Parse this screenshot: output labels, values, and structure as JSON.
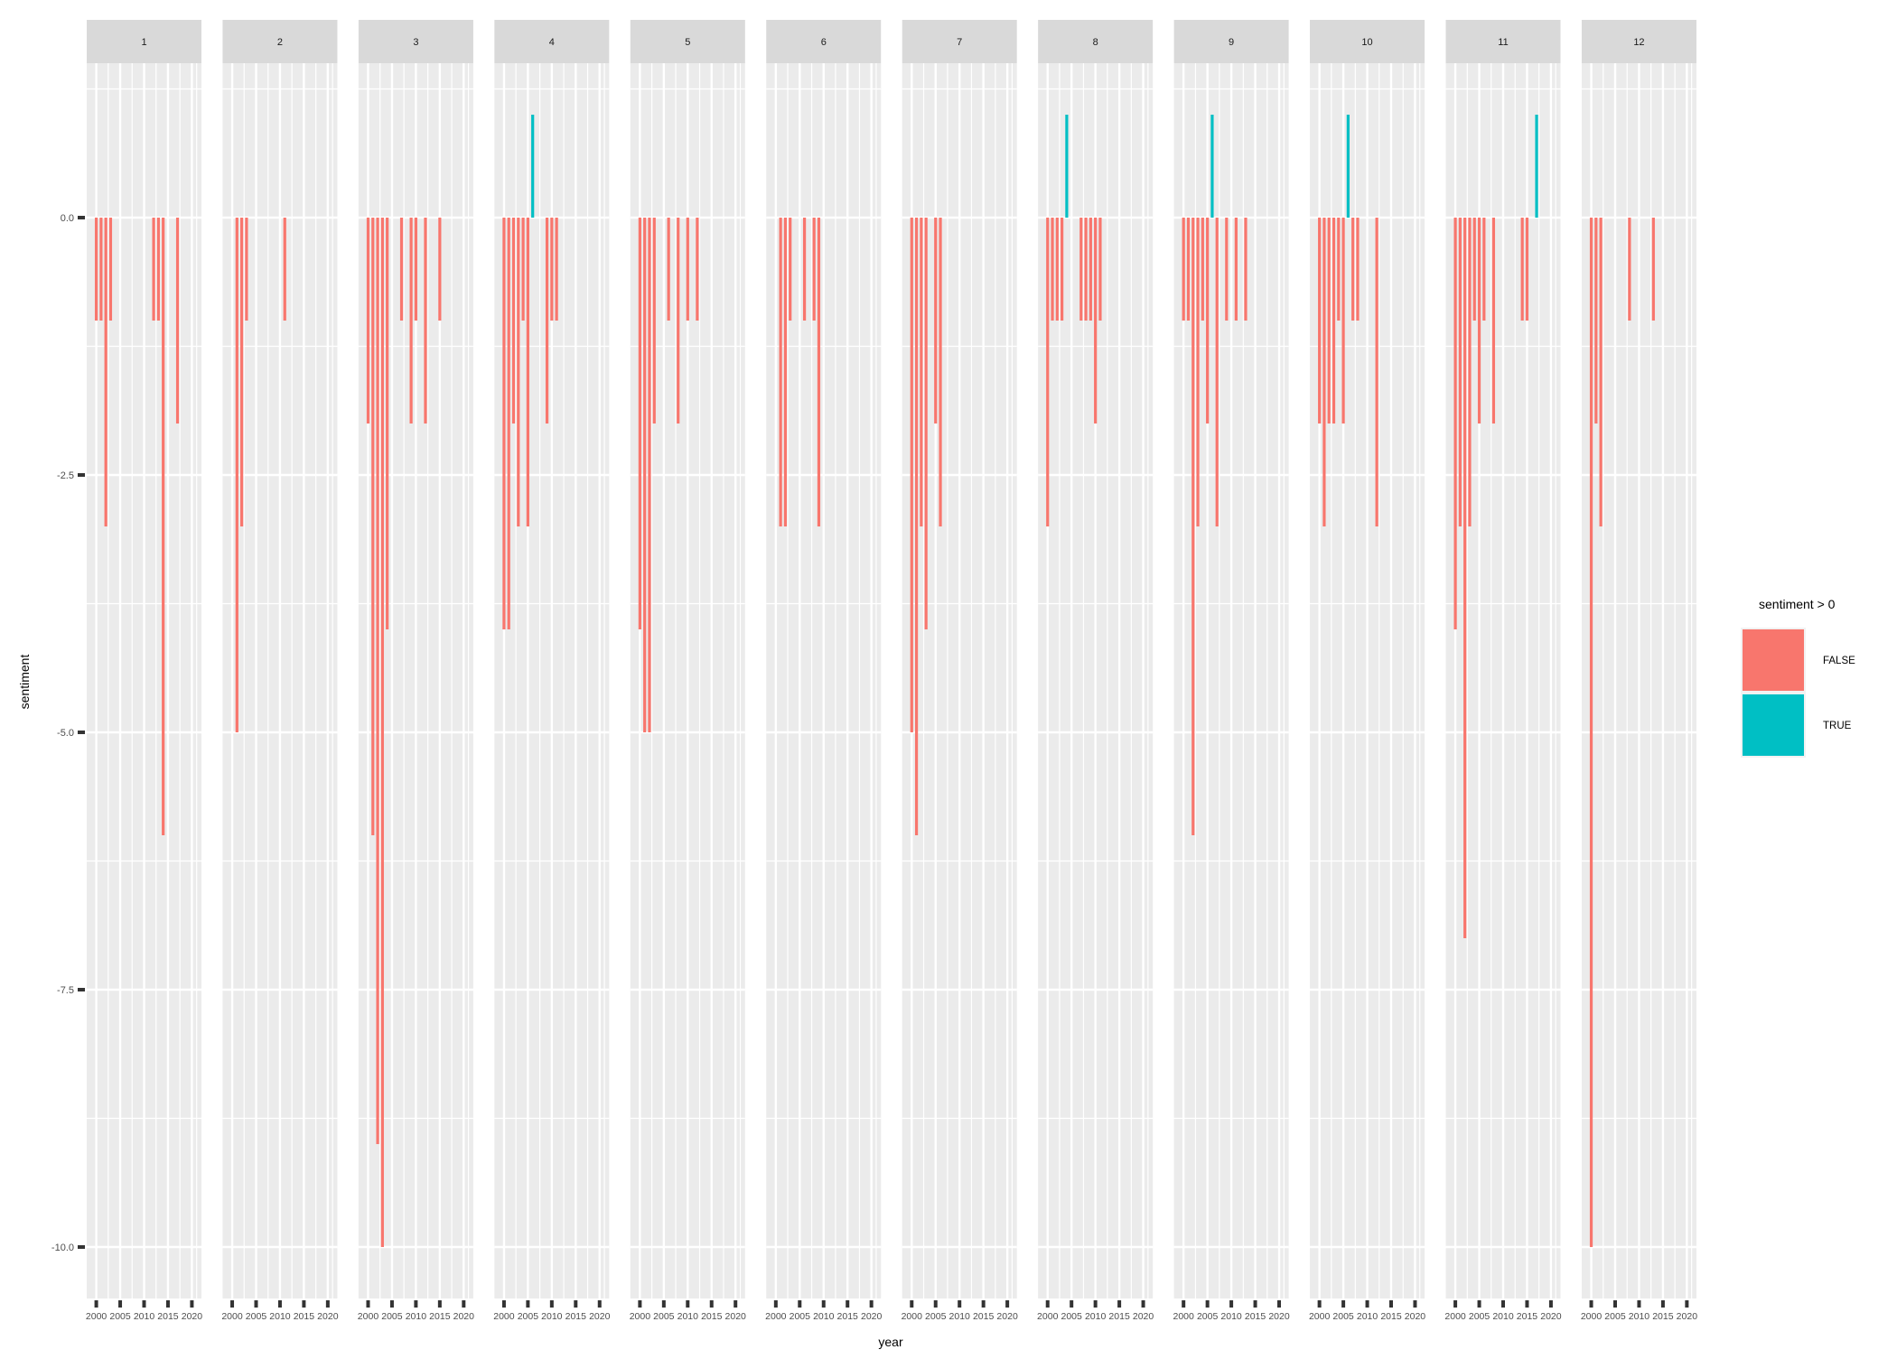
{
  "chart_data": {
    "type": "bar",
    "facet_variable": "month",
    "panels": [
      "1",
      "2",
      "3",
      "4",
      "5",
      "6",
      "7",
      "8",
      "9",
      "10",
      "11",
      "12"
    ],
    "xlabel": "year",
    "ylabel": "sentiment",
    "xlim": [
      1998,
      2022
    ],
    "ylim": [
      -10.5,
      1.5
    ],
    "x_ticks": [
      2000,
      2005,
      2010,
      2015,
      2020
    ],
    "x_tick_labels": [
      "2000",
      "2005",
      "2010",
      "2015",
      "2020"
    ],
    "y_ticks": [
      0,
      -2.5,
      -5,
      -7.5,
      -10
    ],
    "y_tick_labels": [
      "0.0",
      "-2.5",
      "-5.0",
      "-7.5",
      "-10.0"
    ],
    "legend": {
      "title": "sentiment > 0",
      "position": "right",
      "entries": [
        {
          "label": "FALSE",
          "color": "#F8766D"
        },
        {
          "label": "TRUE",
          "color": "#00BFC4"
        }
      ]
    },
    "colors": {
      "negative": "#F8766D",
      "positive": "#00BFC4",
      "panel_bg": "#EBEBEB",
      "strip_bg": "#D9D9D9",
      "grid": "#FFFFFF"
    },
    "series": [
      {
        "panel": "1",
        "points": [
          [
            2000,
            -1
          ],
          [
            2001,
            -1
          ],
          [
            2002,
            -3
          ],
          [
            2003,
            -1
          ],
          [
            2012,
            -1
          ],
          [
            2013,
            -1
          ],
          [
            2014,
            -6
          ],
          [
            2017,
            -2
          ]
        ]
      },
      {
        "panel": "2",
        "points": [
          [
            2001,
            -5
          ],
          [
            2002,
            -3
          ],
          [
            2003,
            -1
          ],
          [
            2011,
            -1
          ]
        ]
      },
      {
        "panel": "3",
        "points": [
          [
            2000,
            -2
          ],
          [
            2001,
            -6
          ],
          [
            2002,
            -9
          ],
          [
            2003,
            -10
          ],
          [
            2004,
            -4
          ],
          [
            2007,
            -1
          ],
          [
            2009,
            -2
          ],
          [
            2010,
            -1
          ],
          [
            2012,
            -2
          ],
          [
            2015,
            -1
          ]
        ]
      },
      {
        "panel": "4",
        "points": [
          [
            2000,
            -4
          ],
          [
            2001,
            -4
          ],
          [
            2002,
            -2
          ],
          [
            2003,
            -3
          ],
          [
            2004,
            -1
          ],
          [
            2005,
            -3
          ],
          [
            2006,
            1
          ],
          [
            2009,
            -2
          ],
          [
            2010,
            -1
          ],
          [
            2011,
            -1
          ]
        ]
      },
      {
        "panel": "5",
        "points": [
          [
            2000,
            -4
          ],
          [
            2001,
            -5
          ],
          [
            2002,
            -5
          ],
          [
            2003,
            -2
          ],
          [
            2006,
            -1
          ],
          [
            2008,
            -2
          ],
          [
            2010,
            -1
          ],
          [
            2012,
            -1
          ]
        ]
      },
      {
        "panel": "6",
        "points": [
          [
            2001,
            -3
          ],
          [
            2002,
            -3
          ],
          [
            2003,
            -1
          ],
          [
            2006,
            -1
          ],
          [
            2008,
            -1
          ],
          [
            2009,
            -3
          ]
        ]
      },
      {
        "panel": "7",
        "points": [
          [
            2000,
            -5
          ],
          [
            2001,
            -6
          ],
          [
            2002,
            -3
          ],
          [
            2003,
            -4
          ],
          [
            2005,
            -2
          ],
          [
            2006,
            -3
          ]
        ]
      },
      {
        "panel": "8",
        "points": [
          [
            2000,
            -3
          ],
          [
            2001,
            -1
          ],
          [
            2002,
            -1
          ],
          [
            2003,
            -1
          ],
          [
            2004,
            1
          ],
          [
            2007,
            -1
          ],
          [
            2008,
            -1
          ],
          [
            2009,
            -1
          ],
          [
            2010,
            -2
          ],
          [
            2011,
            -1
          ]
        ]
      },
      {
        "panel": "9",
        "points": [
          [
            2000,
            -1
          ],
          [
            2001,
            -1
          ],
          [
            2002,
            -6
          ],
          [
            2003,
            -3
          ],
          [
            2004,
            -1
          ],
          [
            2005,
            -2
          ],
          [
            2006,
            1
          ],
          [
            2007,
            -3
          ],
          [
            2009,
            -1
          ],
          [
            2011,
            -1
          ],
          [
            2013,
            -1
          ]
        ]
      },
      {
        "panel": "10",
        "points": [
          [
            2000,
            -2
          ],
          [
            2001,
            -3
          ],
          [
            2002,
            -2
          ],
          [
            2003,
            -2
          ],
          [
            2004,
            -1
          ],
          [
            2005,
            -2
          ],
          [
            2006,
            1
          ],
          [
            2007,
            -1
          ],
          [
            2008,
            -1
          ],
          [
            2012,
            -3
          ]
        ]
      },
      {
        "panel": "11",
        "points": [
          [
            2000,
            -4
          ],
          [
            2001,
            -3
          ],
          [
            2002,
            -7
          ],
          [
            2003,
            -3
          ],
          [
            2004,
            -1
          ],
          [
            2005,
            -2
          ],
          [
            2006,
            -1
          ],
          [
            2008,
            -2
          ],
          [
            2014,
            -1
          ],
          [
            2015,
            -1
          ],
          [
            2017,
            1
          ]
        ]
      },
      {
        "panel": "12",
        "points": [
          [
            2000,
            -10
          ],
          [
            2001,
            -2
          ],
          [
            2002,
            -3
          ],
          [
            2008,
            -1
          ],
          [
            2013,
            -1
          ]
        ]
      }
    ]
  }
}
